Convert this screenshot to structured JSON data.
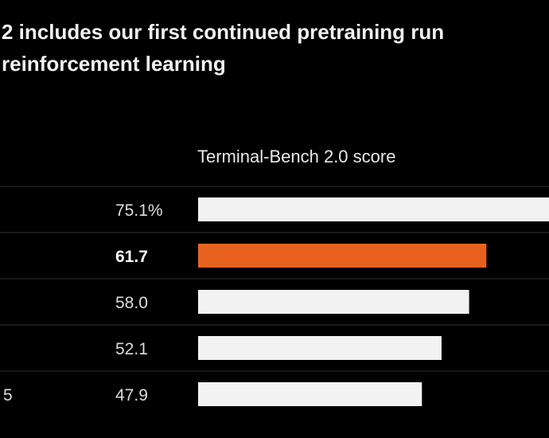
{
  "headline": {
    "line1": "2 includes our first continued pretraining run",
    "line2": "reinforcement learning"
  },
  "chart_data": {
    "type": "bar",
    "orientation": "horizontal",
    "title": "Terminal-Bench 2.0 score",
    "xlabel": "",
    "ylabel": "",
    "xlim": [
      0,
      75.1
    ],
    "grid": false,
    "categories": [
      "",
      "",
      "",
      "",
      "5"
    ],
    "values": [
      75.1,
      61.7,
      58.0,
      52.1,
      47.9
    ],
    "value_labels": [
      "75.1%",
      "61.7",
      "58.0",
      "52.1",
      "47.9"
    ],
    "highlight_index": 1,
    "colors": {
      "default": "#f2f2f2",
      "highlight": "#e8621f",
      "separator": "#2e2e2e"
    }
  }
}
